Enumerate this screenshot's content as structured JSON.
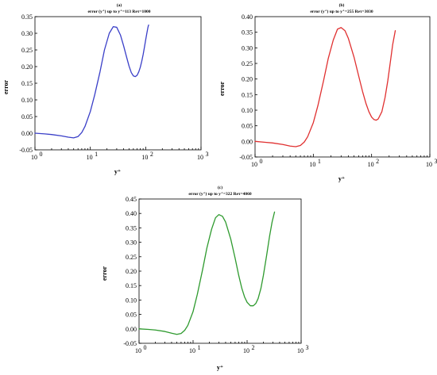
{
  "chart_data": [
    {
      "type": "line",
      "panel_label": "(a)",
      "title": "error (y⁺) up to y⁺=113 Reτ=1000",
      "xlabel": "y⁺",
      "ylabel": "error",
      "xscale": "log",
      "xlim": [
        1,
        1000
      ],
      "ylim": [
        -0.05,
        0.35
      ],
      "yticks": [
        "-0.05",
        "0.00",
        "0.05",
        "0.10",
        "0.15",
        "0.20",
        "0.25",
        "0.30",
        "0.35"
      ],
      "xtick_values": [
        1,
        10,
        100,
        1000
      ],
      "xticks": [
        "10",
        "10",
        "10",
        "10"
      ],
      "xtick_exps": [
        "0",
        "1",
        "2",
        "3"
      ],
      "series": [
        {
          "color": "#3a3fc8",
          "x": [
            1,
            1.5,
            2,
            3,
            4,
            5,
            6,
            7,
            8,
            10,
            12,
            15,
            18,
            22,
            26,
            30,
            35,
            40,
            45,
            50,
            55,
            60,
            65,
            70,
            75,
            80,
            85,
            90,
            95,
            100,
            105,
            110,
            113
          ],
          "y": [
            0.0,
            -0.002,
            -0.004,
            -0.008,
            -0.012,
            -0.014,
            -0.01,
            0.002,
            0.02,
            0.065,
            0.115,
            0.185,
            0.25,
            0.3,
            0.32,
            0.318,
            0.295,
            0.262,
            0.23,
            0.202,
            0.182,
            0.172,
            0.17,
            0.174,
            0.184,
            0.198,
            0.216,
            0.236,
            0.258,
            0.28,
            0.3,
            0.318,
            0.325
          ]
        }
      ]
    },
    {
      "type": "line",
      "panel_label": "(b)",
      "title": "error (y⁺) up to y⁺=255 Reτ=3030",
      "xlabel": "y⁺",
      "ylabel": "error",
      "xscale": "log",
      "xlim": [
        1,
        1000
      ],
      "ylim": [
        -0.05,
        0.4
      ],
      "yticks": [
        "-0.05",
        "0.00",
        "0.05",
        "0.10",
        "0.15",
        "0.20",
        "0.25",
        "0.30",
        "0.35",
        "0.40"
      ],
      "xtick_values": [
        1,
        10,
        100,
        1000
      ],
      "xticks": [
        "10",
        "10",
        "10",
        "10"
      ],
      "xtick_exps": [
        "0",
        "1",
        "2",
        "3"
      ],
      "series": [
        {
          "color": "#e03030",
          "x": [
            1,
            1.5,
            2,
            3,
            4,
            5,
            6,
            7,
            8,
            10,
            12,
            15,
            18,
            22,
            26,
            30,
            35,
            40,
            50,
            60,
            70,
            80,
            90,
            100,
            110,
            120,
            130,
            150,
            170,
            190,
            210,
            230,
            255
          ],
          "y": [
            0.0,
            -0.003,
            -0.005,
            -0.01,
            -0.015,
            -0.017,
            -0.013,
            -0.002,
            0.015,
            0.06,
            0.115,
            0.195,
            0.265,
            0.325,
            0.36,
            0.365,
            0.355,
            0.33,
            0.27,
            0.21,
            0.16,
            0.122,
            0.095,
            0.078,
            0.07,
            0.068,
            0.072,
            0.095,
            0.14,
            0.195,
            0.255,
            0.31,
            0.355
          ]
        }
      ]
    },
    {
      "type": "line",
      "panel_label": "(c)",
      "title": "error (y⁺) up to y⁺=322 Reτ=4060",
      "xlabel": "y⁺",
      "ylabel": "error",
      "xscale": "log",
      "xlim": [
        1,
        1000
      ],
      "ylim": [
        -0.05,
        0.45
      ],
      "yticks": [
        "-0.05",
        "0.00",
        "0.05",
        "0.10",
        "0.15",
        "0.20",
        "0.25",
        "0.30",
        "0.35",
        "0.40",
        "0.45"
      ],
      "xtick_values": [
        1,
        10,
        100,
        1000
      ],
      "xticks": [
        "10",
        "10",
        "10",
        "10"
      ],
      "xtick_exps": [
        "0",
        "1",
        "2",
        "3"
      ],
      "series": [
        {
          "color": "#2e9a2e",
          "x": [
            1,
            1.5,
            2,
            3,
            4,
            5,
            6,
            7,
            8,
            10,
            12,
            15,
            18,
            22,
            26,
            30,
            35,
            40,
            50,
            60,
            70,
            80,
            90,
            100,
            115,
            130,
            145,
            160,
            180,
            200,
            230,
            260,
            290,
            322
          ],
          "y": [
            0.0,
            -0.002,
            -0.004,
            -0.009,
            -0.015,
            -0.019,
            -0.016,
            -0.005,
            0.012,
            0.06,
            0.12,
            0.205,
            0.28,
            0.345,
            0.385,
            0.396,
            0.39,
            0.37,
            0.31,
            0.245,
            0.185,
            0.14,
            0.11,
            0.092,
            0.08,
            0.08,
            0.088,
            0.105,
            0.14,
            0.185,
            0.255,
            0.32,
            0.37,
            0.405
          ]
        }
      ]
    }
  ]
}
